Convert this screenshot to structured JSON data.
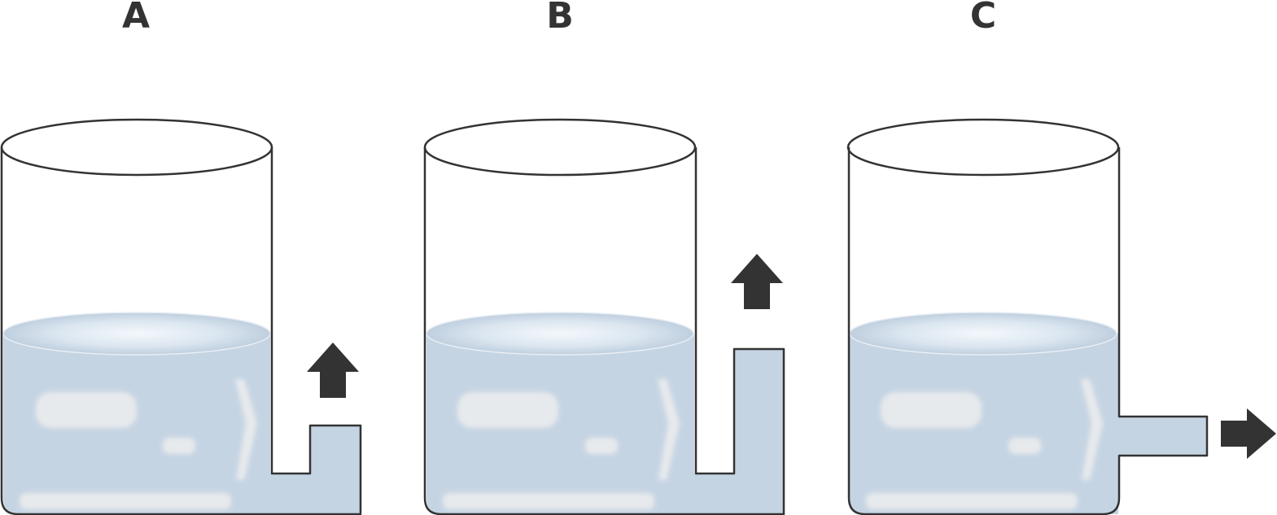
{
  "panels": [
    {
      "label": "A",
      "outlet": "up",
      "arrow_direction": "up"
    },
    {
      "label": "B",
      "outlet": "up",
      "arrow_direction": "up"
    },
    {
      "label": "C",
      "outlet": "side",
      "arrow_direction": "right"
    }
  ],
  "colors": {
    "water": "#c5d4e3",
    "water_surface_center": "#f4f8fc",
    "water_surface_edge": "#c3d2e1",
    "highlight": "#eeeeee",
    "outline": "#333333",
    "arrow": "#333333"
  }
}
